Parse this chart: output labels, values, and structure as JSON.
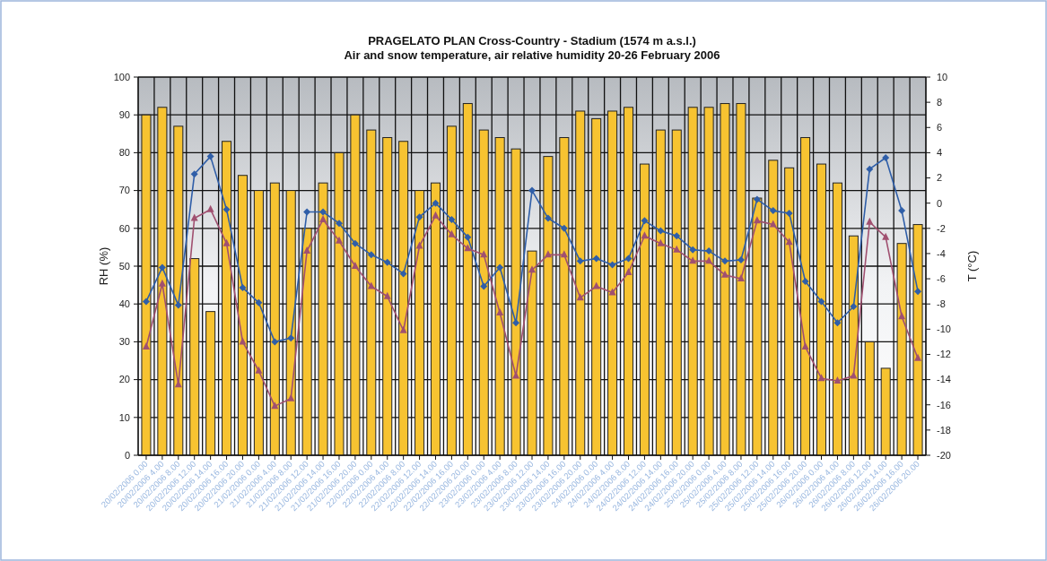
{
  "chart_data": {
    "type": "bar",
    "title": "PRAGELATO PLAN Cross-Country - Stadium (1574 m a.s.l.)",
    "subtitle": "Air and snow temperature, air relative humidity 20-26 February 2006",
    "ylabel": "RH (%)",
    "y2label": "T (°C)",
    "categories": [
      "20/02/2006 0.00",
      "20/02/2006 4.00",
      "20/02/2006 8.00",
      "20/02/2006 12.00",
      "20/02/2006 14.00",
      "20/02/2006 16.00",
      "20/02/2006 20.00",
      "21/02/2006 0.00",
      "21/02/2006 4.00",
      "21/02/2006 8.00",
      "21/02/2006 12.00",
      "21/02/2006 14.00",
      "21/02/2006 16.00",
      "21/02/2006 20.00",
      "22/02/2006 0.00",
      "22/02/2006 4.00",
      "22/02/2006 8.00",
      "22/02/2006 12.00",
      "22/02/2006 14.00",
      "22/02/2006 16.00",
      "22/02/2006 20.00",
      "23/02/2006 0.00",
      "23/02/2006 4.00",
      "23/02/2006 8.00",
      "23/02/2006 12.00",
      "23/02/2006 14.00",
      "23/02/2006 16.00",
      "23/02/2006 20.00",
      "24/02/2006 0.00",
      "24/02/2006 4.00",
      "24/02/2006 8.00",
      "24/02/2006 12.00",
      "24/02/2006 14.00",
      "24/02/2006 16.00",
      "24/02/2006 20.00",
      "25/02/2006 0.00",
      "25/02/2006 4.00",
      "25/02/2006 8.00",
      "25/02/2006 12.00",
      "25/02/2006 14.00",
      "25/02/2006 16.00",
      "25/02/2006 20.00",
      "26/02/2006 0.00",
      "26/02/2006 4.00",
      "26/02/2006 8.00",
      "26/02/2006 12.00",
      "26/02/2006 14.00",
      "26/02/2006 16.00",
      "26/02/2006 20.00"
    ],
    "series": [
      {
        "color": "#f7c331",
        "values": [
          90,
          92,
          87,
          52,
          38,
          83,
          74,
          70,
          72,
          70,
          60,
          72,
          80,
          90,
          86,
          84,
          83,
          70,
          72,
          87,
          93,
          86,
          84,
          81,
          54,
          79,
          84,
          91,
          89,
          91,
          92,
          77,
          86,
          86,
          92,
          92,
          93,
          93,
          68,
          78,
          76,
          84,
          77,
          72,
          58,
          30,
          23,
          56,
          61
        ]
      },
      {
        "type": "line",
        "axis": "y2",
        "color": "#2f5ea8",
        "marker": "diamond",
        "values": [
          -7.8,
          -5.1,
          -8.1,
          2.3,
          3.7,
          -0.5,
          -6.7,
          -7.9,
          -11,
          -10.7,
          -0.7,
          -0.7,
          -1.6,
          -3.2,
          -4.1,
          -4.7,
          -5.6,
          -1.1,
          0,
          -1.3,
          -2.7,
          -6.6,
          -5.1,
          -9.5,
          1,
          -1.2,
          -2,
          -4.6,
          -4.4,
          -4.9,
          -4.4,
          -1.4,
          -2.2,
          -2.6,
          -3.7,
          -3.8,
          -4.6,
          -4.5,
          0.3,
          -0.6,
          -0.8,
          -6.2,
          -7.8,
          -9.5,
          -8.2,
          2.7,
          3.6,
          -0.6,
          -7
        ]
      },
      {
        "type": "line",
        "axis": "y2",
        "color": "#a05070",
        "marker": "triangle",
        "values": [
          -11.4,
          -6.4,
          -14.4,
          -1.2,
          -0.5,
          -3.2,
          -11,
          -13.3,
          -16.1,
          -15.5,
          -3.8,
          -1.3,
          -3,
          -5,
          -6.6,
          -7.4,
          -10.1,
          -3.4,
          -1,
          -2.5,
          -3.6,
          -4.1,
          -8.7,
          -13.7,
          -5.3,
          -4.1,
          -4.1,
          -7.5,
          -6.6,
          -7.1,
          -5.5,
          -2.6,
          -3.2,
          -3.7,
          -4.6,
          -4.6,
          -5.7,
          -6,
          -1.4,
          -1.7,
          -3.1,
          -11.4,
          -13.9,
          -14.1,
          -13.7,
          -1.5,
          -2.7,
          -9,
          -12.3
        ]
      }
    ],
    "ylim": [
      0,
      100
    ],
    "yticks": [
      0,
      10,
      20,
      30,
      40,
      50,
      60,
      70,
      80,
      90,
      100
    ],
    "y2lim": [
      -20,
      10
    ],
    "y2ticks": [
      -20,
      -18,
      -16,
      -14,
      -12,
      -10,
      -8,
      -6,
      -4,
      -2,
      0,
      2,
      4,
      6,
      8,
      10
    ],
    "grid": true,
    "legend": false,
    "line_style": "solid"
  }
}
